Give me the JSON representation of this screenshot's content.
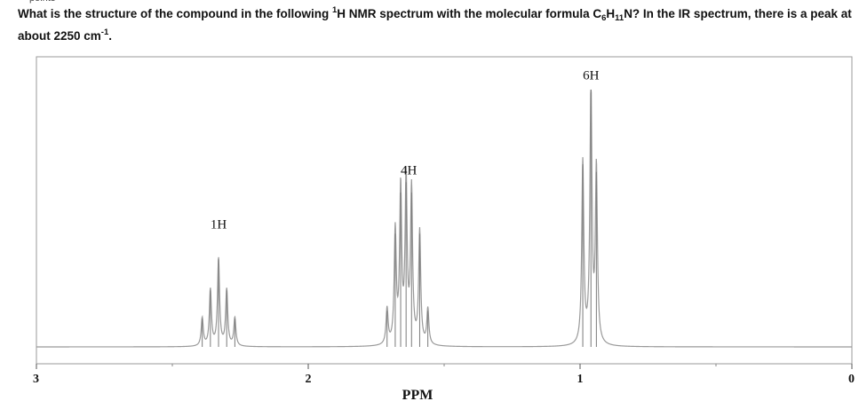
{
  "header": {
    "cut_label": "points",
    "q_part1": "What is the structure of the compound in the following ",
    "q_sup1": "1",
    "q_part2": "H NMR spectrum with the molecular formula C",
    "q_sub1": "6",
    "q_part3": "H",
    "q_sub2": "11",
    "q_part4": "N? In the IR spectrum, there is a peak at about 2250 cm",
    "q_sup2": "-1",
    "q_part5": "."
  },
  "chart_data": {
    "type": "line",
    "xlabel": "PPM",
    "xlim": [
      3,
      0
    ],
    "x_reversed": true,
    "ticks": [
      "3",
      "2",
      "1",
      "0"
    ],
    "grid": false,
    "baseline_color": "#999999",
    "peaks": [
      {
        "label": "1H",
        "center": 2.33,
        "lines": [
          2.39,
          2.36,
          2.33,
          2.3,
          2.27
        ],
        "heights": [
          0.11,
          0.22,
          0.34,
          0.22,
          0.11
        ],
        "label_y": 0.46
      },
      {
        "label": "4H",
        "center": 1.63,
        "lines": [
          1.71,
          1.68,
          1.66,
          1.64,
          1.62,
          1.59,
          1.56
        ],
        "heights": [
          0.14,
          0.44,
          0.6,
          0.64,
          0.6,
          0.44,
          0.14
        ],
        "label_y": 0.67
      },
      {
        "label": "6H",
        "center": 0.96,
        "lines": [
          0.99,
          0.96,
          0.94
        ],
        "heights": [
          0.71,
          1.0,
          0.68
        ],
        "label_y": 1.04
      }
    ]
  }
}
